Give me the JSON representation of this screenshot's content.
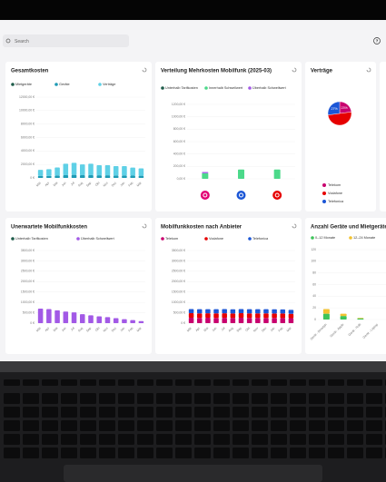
{
  "search": {
    "placeholder": "Search"
  },
  "toolbar": {
    "help": "?"
  },
  "widgets": [
    {
      "type": "bar",
      "title": "Gesamtkosten",
      "stacked": true,
      "categories": [
        "Mär",
        "Apr",
        "Mai",
        "Jun",
        "Jul",
        "Aug",
        "Sep",
        "Okt",
        "Nov",
        "Dez",
        "Jan",
        "Feb",
        "Mär"
      ],
      "series": [
        {
          "name": "Mietgeräte",
          "color": "#1f5c4a",
          "values": [
            0,
            0,
            0,
            0,
            0,
            0,
            0,
            0,
            0,
            0,
            0,
            0,
            0
          ]
        },
        {
          "name": "Geräte",
          "color": "#1f9bb5",
          "values": [
            300,
            300,
            350,
            400,
            450,
            400,
            400,
            380,
            380,
            350,
            350,
            330,
            320
          ]
        },
        {
          "name": "Verträge",
          "color": "#5fd0e6",
          "values": [
            900,
            1000,
            1200,
            1700,
            1800,
            1600,
            1700,
            1500,
            1500,
            1400,
            1400,
            1200,
            1100
          ]
        }
      ],
      "ylim": [
        0,
        12000
      ],
      "yticks": [
        {
          "value": 0,
          "label": "0 €"
        },
        {
          "value": 2000,
          "label": "2000,00 €"
        },
        {
          "value": 4000,
          "label": "4000,00 €"
        },
        {
          "value": 6000,
          "label": "6000,00 €"
        },
        {
          "value": 8000,
          "label": "8000,00 €"
        },
        {
          "value": 10000,
          "label": "10000,00 €"
        },
        {
          "value": 12000,
          "label": "12000,00 €"
        }
      ]
    },
    {
      "type": "bar",
      "title": "Verteilung Mehrkosten Mobilfunk (2025-03)",
      "stacked": true,
      "categories": [
        null,
        null,
        null
      ],
      "series": [
        {
          "name": "Unterhalb Tarifkosten",
          "color": "#1f5c4a",
          "values": [
            0,
            0,
            0
          ]
        },
        {
          "name": "Innerhalb Schwellwert",
          "color": "#4cd98a",
          "values": [
            90,
            150,
            150
          ]
        },
        {
          "name": "Überhalb Schwellwert",
          "color": "#a259e6",
          "values": [
            20,
            0,
            0
          ]
        }
      ],
      "ylim": [
        0,
        1200
      ],
      "yticks": [
        {
          "value": 0,
          "label": "0,00 €"
        },
        {
          "value": 200,
          "label": "200,00 €"
        },
        {
          "value": 400,
          "label": "400,00 €"
        },
        {
          "value": 600,
          "label": "600,00 €"
        },
        {
          "value": 800,
          "label": "800,00 €"
        },
        {
          "value": 1000,
          "label": "1000,00 €"
        },
        {
          "value": 1200,
          "label": "1200,00 €"
        }
      ]
    },
    {
      "type": "pie",
      "title": "Verträge",
      "categories": [
        "Telekom",
        "Vodafone",
        "Telefonica"
      ],
      "values": [
        23,
        50,
        27
      ],
      "value_labels": [
        "23%",
        null,
        "27%"
      ],
      "colors": [
        "#c8006e",
        "#e60000",
        "#1b56d6"
      ]
    },
    {
      "type": "bar",
      "title": "Unerwartete Mobilfunkkosten",
      "stacked": true,
      "categories": [
        "Mär",
        "Apr",
        "Mai",
        "Jun",
        "Jul",
        "Aug",
        "Sep",
        "Okt",
        "Nov",
        "Dez",
        "Jan",
        "Feb",
        "Mär"
      ],
      "series": [
        {
          "name": "Unterhalb Tarifkosten",
          "color": "#1f5c4a",
          "values": [
            0,
            0,
            0,
            0,
            0,
            0,
            0,
            0,
            0,
            0,
            0,
            0,
            0
          ]
        },
        {
          "name": "Überhalb Schwellwert",
          "color": "#a259e6",
          "values": [
            700,
            680,
            620,
            560,
            520,
            430,
            380,
            330,
            290,
            240,
            190,
            150,
            100
          ]
        }
      ],
      "ylim": [
        0,
        3500
      ],
      "yticks": [
        {
          "value": 0,
          "label": "0 €"
        },
        {
          "value": 500,
          "label": "500,00 €"
        },
        {
          "value": 1000,
          "label": "1000,00 €"
        },
        {
          "value": 1500,
          "label": "1500,00 €"
        },
        {
          "value": 2000,
          "label": "2000,00 €"
        },
        {
          "value": 2500,
          "label": "2500,00 €"
        },
        {
          "value": 3000,
          "label": "3000,00 €"
        },
        {
          "value": 3500,
          "label": "3500,00 €"
        }
      ]
    },
    {
      "type": "bar",
      "title": "Mobilfunkkosten nach Anbieter",
      "stacked": true,
      "categories": [
        "Mär",
        "Apr",
        "Mai",
        "Jun",
        "Jul",
        "Aug",
        "Sep",
        "Okt",
        "Nov",
        "Dez",
        "Jan",
        "Feb",
        "Mär"
      ],
      "series": [
        {
          "name": "Telekom",
          "color": "#c8006e",
          "values": [
            260,
            250,
            260,
            250,
            255,
            250,
            260,
            250,
            255,
            250,
            250,
            245,
            240
          ]
        },
        {
          "name": "Vodafone",
          "color": "#e60000",
          "values": [
            220,
            220,
            215,
            220,
            220,
            215,
            220,
            220,
            215,
            220,
            215,
            220,
            210
          ]
        },
        {
          "name": "Telefonica",
          "color": "#1b56d6",
          "values": [
            200,
            205,
            200,
            200,
            205,
            200,
            200,
            205,
            200,
            200,
            200,
            195,
            190
          ]
        }
      ],
      "ylim": [
        0,
        3500
      ],
      "yticks": [
        {
          "value": 0,
          "label": "0 €"
        },
        {
          "value": 500,
          "label": "500,00 €"
        },
        {
          "value": 1000,
          "label": "1000,00 €"
        },
        {
          "value": 1500,
          "label": "1500,00 €"
        },
        {
          "value": 2000,
          "label": "2000,00 €"
        },
        {
          "value": 2500,
          "label": "2500,00 €"
        },
        {
          "value": 3000,
          "label": "3000,00 €"
        },
        {
          "value": 3500,
          "label": "3500,00 €"
        }
      ]
    },
    {
      "type": "bar",
      "title": "Anzahl Geräte und Mietgeräte",
      "stacked": true,
      "categories": [
        "Gerät - Smartph",
        "Gerät - Apple",
        "Gerät - Rolli",
        "Gerät - Laptop"
      ],
      "series": [
        {
          "name": "0–12 Monate",
          "color": "#3ec45a",
          "values": [
            10,
            6,
            2,
            0
          ]
        },
        {
          "name": "12–24 Monate",
          "color": "#f2c230",
          "values": [
            8,
            4,
            1,
            0
          ]
        }
      ],
      "ylim": [
        0,
        120
      ],
      "yticks": [
        0,
        20,
        40,
        60,
        80,
        100,
        120
      ]
    }
  ]
}
